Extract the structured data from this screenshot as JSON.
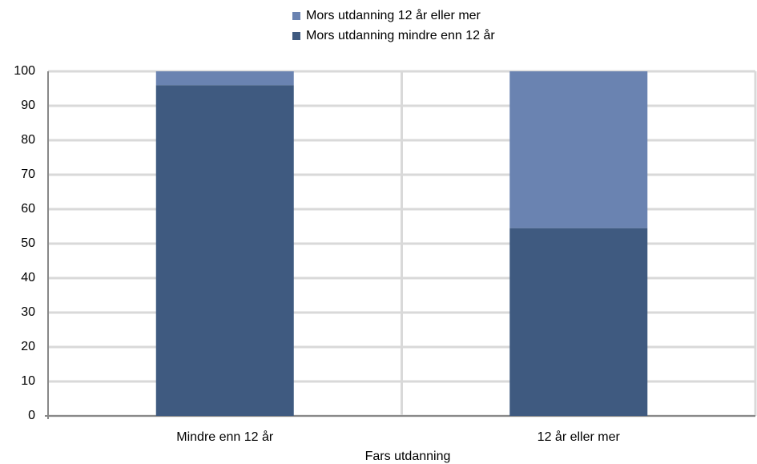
{
  "chart_data": {
    "type": "stacked_bar",
    "x_label": "Fars utdanning",
    "categories": [
      "Mindre enn 12 år",
      "12 år eller mer"
    ],
    "series": [
      {
        "name": "Mors utdanning mindre enn 12 år",
        "color": "#3f5a80",
        "values": [
          96,
          54.5
        ]
      },
      {
        "name": "Mors utdanning 12 år eller mer",
        "color": "#6a83b1",
        "values": [
          4,
          45.5
        ]
      }
    ],
    "ylim": [
      0,
      100
    ],
    "yticks": [
      0,
      10,
      20,
      30,
      40,
      50,
      60,
      70,
      80,
      90,
      100
    ],
    "grid": true,
    "legend": "top"
  }
}
